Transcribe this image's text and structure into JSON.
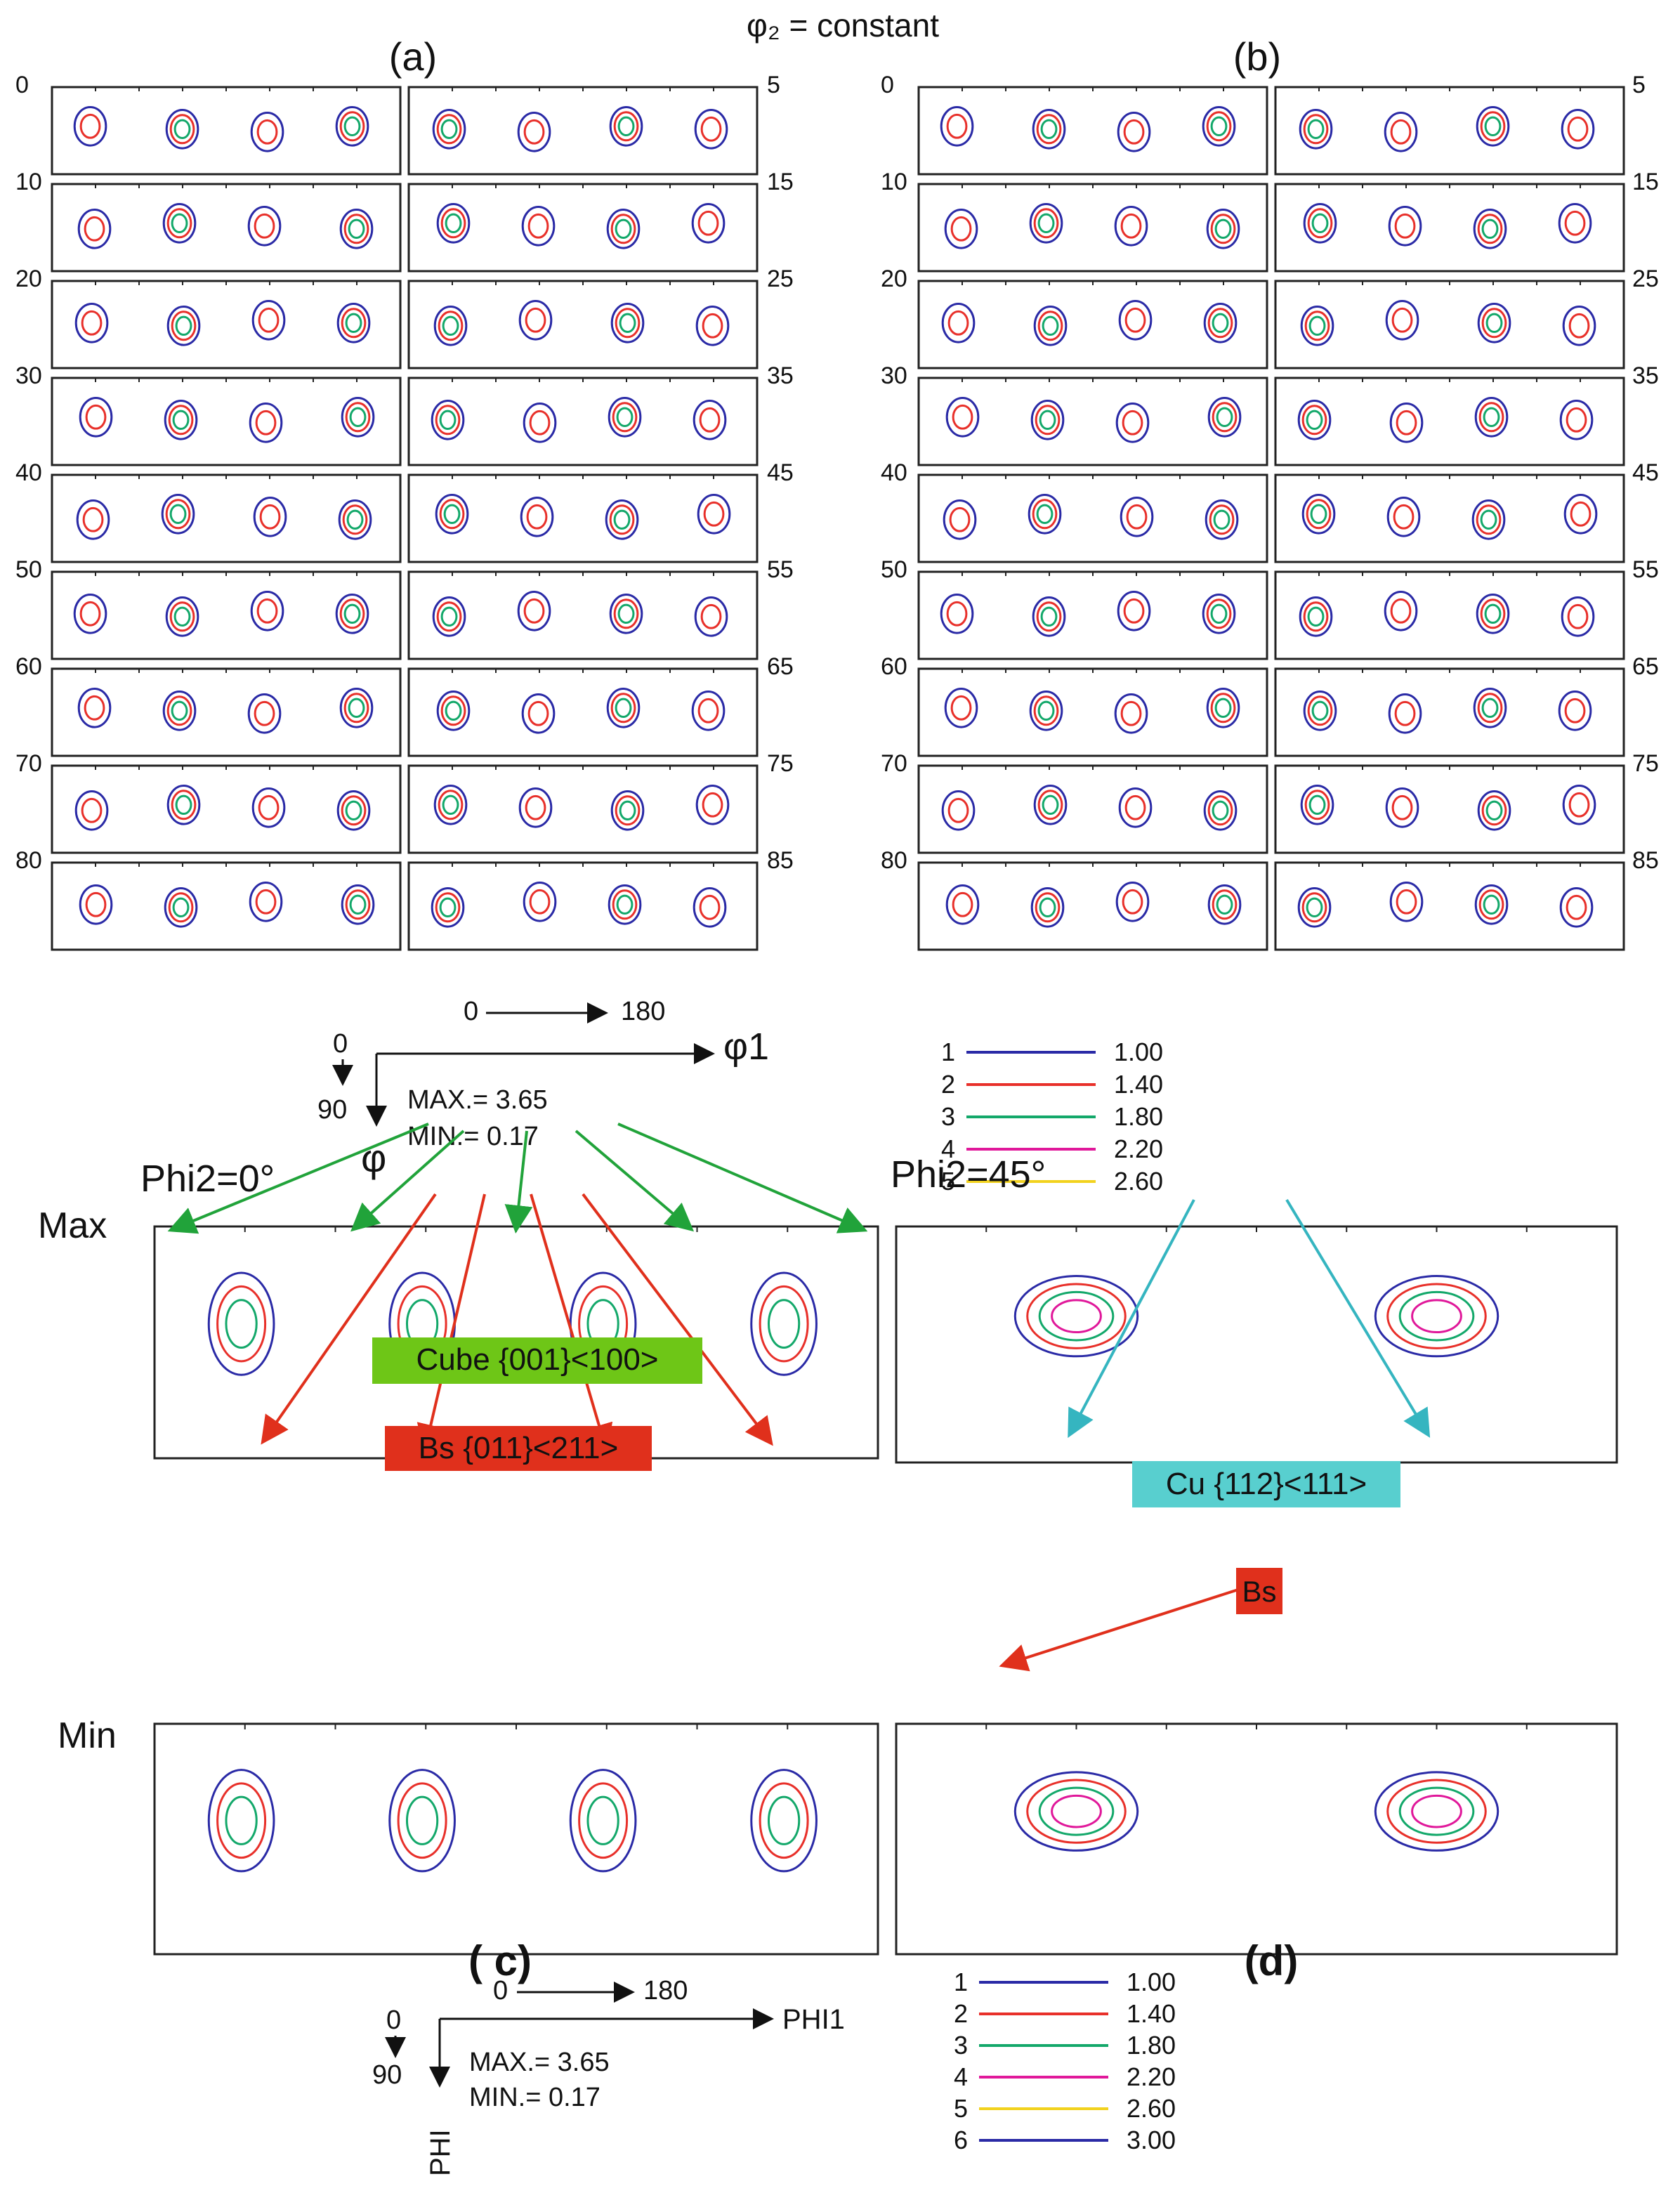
{
  "header": {
    "title": "φ₂ = constant"
  },
  "panels": {
    "a": "(a)",
    "b": "(b)",
    "c": "( c)",
    "d": "(d)"
  },
  "sections": {
    "left_labels": [
      "0",
      "10",
      "20",
      "30",
      "40",
      "50",
      "60",
      "70",
      "80"
    ],
    "right_labels": [
      "5",
      "15",
      "25",
      "35",
      "45",
      "55",
      "65",
      "75",
      "85"
    ]
  },
  "axis_top": {
    "phi1_start": "0",
    "phi1_end": "180",
    "phi1_name": "φ1",
    "phi_start": "0",
    "phi_end": "90",
    "phi_name": "φ",
    "max_text": "MAX.= 3.65",
    "min_text": "MIN.= 0.17"
  },
  "legend_top": [
    {
      "index": "1",
      "value": "1.00",
      "color": "#2a2aa6"
    },
    {
      "index": "2",
      "value": "1.40",
      "color": "#e8302a"
    },
    {
      "index": "3",
      "value": "1.80",
      "color": "#13a86a"
    },
    {
      "index": "4",
      "value": "2.20",
      "color": "#e0189a"
    },
    {
      "index": "5",
      "value": "2.60",
      "color": "#f2d21e"
    }
  ],
  "bottom": {
    "phi2_0": "Phi2=0°",
    "phi2_45": "Phi2=45°",
    "row_max": "Max",
    "row_min": "Min",
    "cube_label": "Cube {001}<100>",
    "bs_label": "Bs {011}<211>",
    "cu_label": "Cu {112}<111>",
    "bs_short": "Bs",
    "cube_color": "#6ec617",
    "bs_color": "#e0301c",
    "cu_color": "#58cfcf"
  },
  "axis_bottom": {
    "phi1_start": "0",
    "phi1_end": "180",
    "phi1_name": "PHI1",
    "phi_start": "0",
    "phi_end": "90",
    "phi_name": "PHI",
    "max_text": "MAX.= 3.65",
    "min_text": "MIN.= 0.17"
  },
  "legend_bottom": [
    {
      "index": "1",
      "value": "1.00",
      "color": "#2a2aa6"
    },
    {
      "index": "2",
      "value": "1.40",
      "color": "#e8302a"
    },
    {
      "index": "3",
      "value": "1.80",
      "color": "#13a86a"
    },
    {
      "index": "4",
      "value": "2.20",
      "color": "#e0189a"
    },
    {
      "index": "5",
      "value": "2.60",
      "color": "#f2d21e"
    },
    {
      "index": "6",
      "value": "3.00",
      "color": "#2a2aa6"
    }
  ]
}
